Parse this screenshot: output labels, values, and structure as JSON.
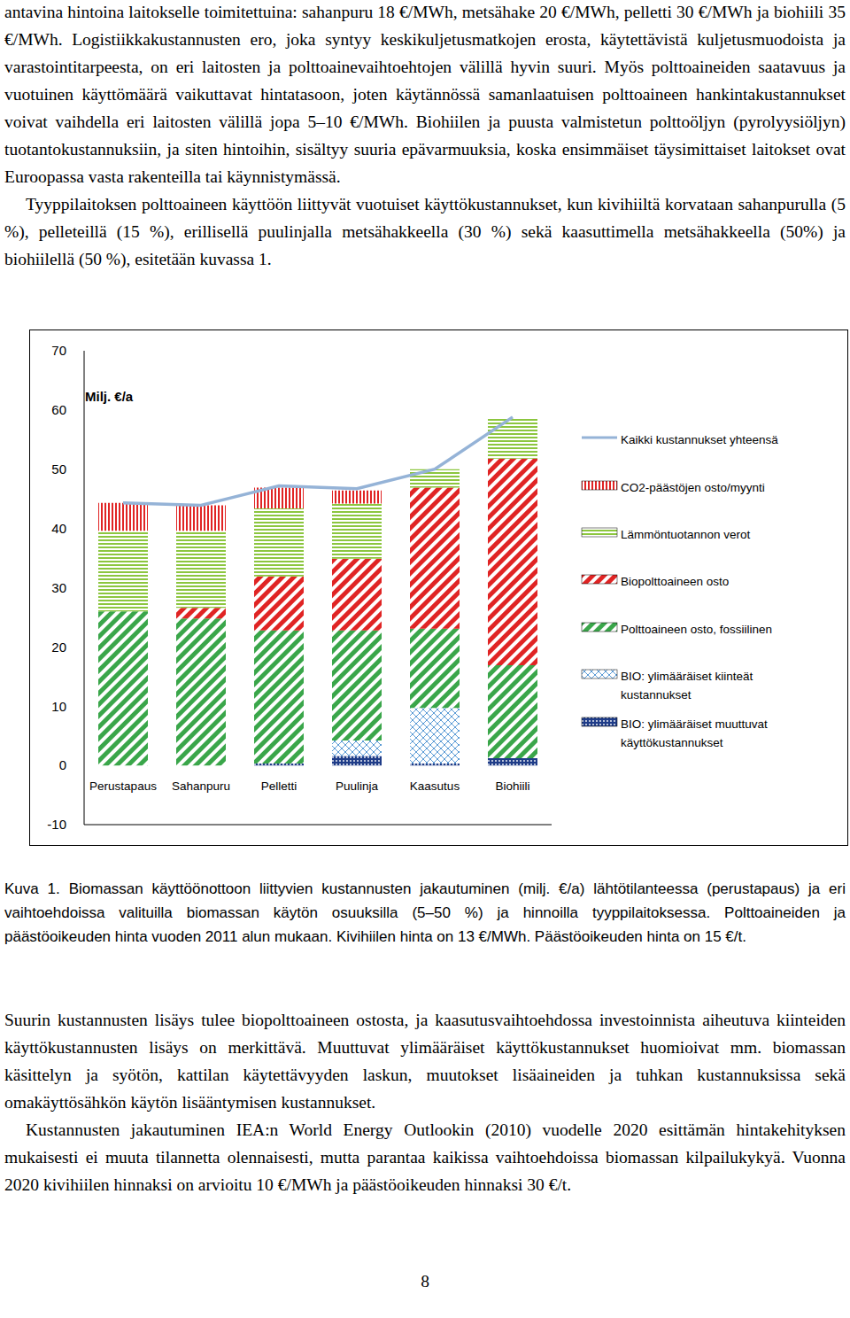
{
  "document": {
    "paragraphs_before": [
      "antavina hintoina laitokselle toimitettuina: sahanpuru 18 €/MWh, metsähake 20 €/MWh, pelletti 30 €/MWh ja biohiili 35 €/MWh. Logistiikkakustannusten ero, joka syntyy keskikuljetusmatkojen erosta, käytettävistä kuljetusmuodoista ja varastointitarpeesta, on eri laitosten ja polttoainevaihtoehtojen välillä hyvin suuri. Myös polttoaineiden saatavuus ja vuotuinen käyttömäärä vaikuttavat hintatasoon, joten käytännössä samanlaatuisen polttoaineen hankintakustannukset voivat vaihdella eri laitosten välillä jopa 5–10 €/MWh. Biohiilen ja puusta valmistetun polttoöljyn (pyrolyysiöljyn) tuotantokustannuksiin, ja siten hintoihin, sisältyy suuria epävarmuuksia, koska ensimmäiset täysimittaiset laitokset ovat Euroopassa vasta rakenteilla tai käynnistymässä.",
      "Tyyppilaitoksen polttoaineen käyttöön liittyvät vuotuiset käyttökustannukset, kun kivihiiltä korvataan sahanpurulla (5 %), pelleteillä (15 %), erillisellä puulinjalla metsähakkeella (30 %) sekä kaasuttimella metsähakkeella (50%) ja biohiilellä (50 %), esitetään kuvassa 1."
    ],
    "caption": "Kuva 1. Biomassan käyttöönottoon liittyvien kustannusten jakautuminen (milj. €/a) lähtötilanteessa (perustapaus) ja eri vaihtoehdoissa valituilla biomassan käytön osuuksilla (5–50 %) ja hinnoilla tyyppilaitoksessa. Polttoaineiden ja päästöoikeuden hinta vuoden 2011 alun mukaan. Kivihiilen hinta on 13 €/MWh. Päästöoikeuden hinta on 15 €/t.",
    "paragraphs_after": [
      "Suurin kustannusten lisäys tulee biopolttoaineen ostosta, ja kaasutusvaihtoehdossa investoinnista aiheutuva kiinteiden käyttökustannusten lisäys on merkittävä. Muuttuvat ylimääräiset käyttökustannukset huomioivat mm. biomassan käsittelyn ja syötön, kattilan käytettävyyden laskun, muutokset lisäaineiden ja tuhkan kustannuksissa sekä omakäyttösähkön käytön lisääntymisen kustannukset.",
      "Kustannusten jakautuminen IEA:n World Energy Outlookin (2010) vuodelle 2020 esittämän hintakehityksen mukaisesti ei muuta tilannetta olennaisesti, mutta parantaa kaikissa vaihtoehdoissa biomassan kilpailukykyä. Vuonna 2020 kivihiilen hinnaksi on arvioitu 10 €/MWh ja päästöoikeuden hinnaksi 30 €/t."
    ],
    "page_number": "8"
  },
  "chart_data": {
    "type": "bar",
    "stacked": true,
    "y_label": "Milj. €/a",
    "categories": [
      "Perustapaus",
      "Sahanpuru",
      "Pelletti",
      "Puulinja",
      "Kaasutus",
      "Biohiili"
    ],
    "ylim": [
      -10,
      70
    ],
    "yticks": [
      -10,
      0,
      10,
      20,
      30,
      40,
      50,
      60,
      70
    ],
    "grid": false,
    "legend": "right",
    "series": [
      {
        "name": "BIO: ylimääräiset muuttuvat käyttökustannukset",
        "type": "bar",
        "color": "#1f3c88",
        "values": [
          0,
          0,
          0.3,
          1.6,
          0.3,
          1.2
        ]
      },
      {
        "name": "BIO: ylimääräiset kiinteät kustannukset",
        "type": "bar",
        "color": "#5b9bd5",
        "values": [
          0,
          0,
          0,
          2.6,
          9.4,
          0
        ]
      },
      {
        "name": "Polttoaineen osto, fossiilinen",
        "type": "bar",
        "color": "#3aa64a",
        "values": [
          26.0,
          24.8,
          22.5,
          18.6,
          13.4,
          15.7
        ]
      },
      {
        "name": "Biopolttoaineen osto",
        "type": "bar",
        "color": "#e02424",
        "values": [
          0,
          1.8,
          9.1,
          12.1,
          23.8,
          34.9
        ]
      },
      {
        "name": "Lämmöntuotannon verot",
        "type": "bar",
        "color": "#8cc63f",
        "values": [
          13.6,
          13.0,
          11.5,
          9.3,
          3.1,
          6.9
        ]
      },
      {
        "name": "CO2-päästöjen osto/myynti",
        "type": "bar",
        "color": "#e02424",
        "values": [
          4.7,
          4.3,
          3.5,
          2.2,
          0,
          0
        ]
      },
      {
        "name": "Kaikki kustannukset yhteensä",
        "type": "line",
        "color": "#95b3d7",
        "values": [
          44.3,
          43.9,
          47.2,
          46.7,
          50.0,
          58.8
        ]
      }
    ]
  }
}
